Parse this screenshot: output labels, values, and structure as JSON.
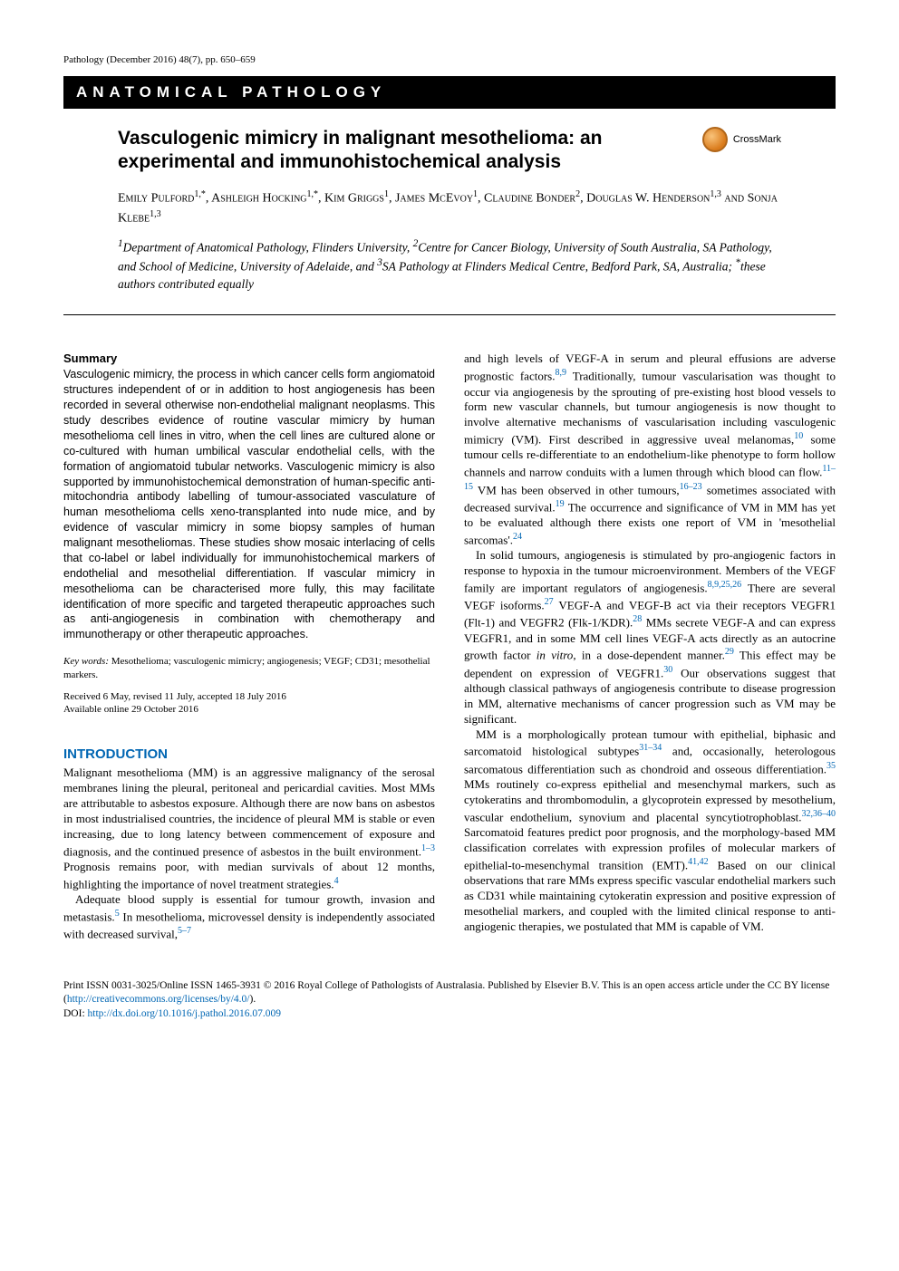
{
  "journal_header": "Pathology (December 2016) 48(7), pp. 650–659",
  "category": "ANATOMICAL PATHOLOGY",
  "title": "Vasculogenic mimicry in malignant mesothelioma: an experimental and immunohistochemical analysis",
  "crossmark_label": "CrossMark",
  "authors_html": "Emily Pulford<sup>1,*</sup>, Ashleigh Hocking<sup>1,*</sup>, Kim Griggs<sup>1</sup>, James McEvoy<sup>1</sup>, Claudine Bonder<sup>2</sup>, Douglas W. Henderson<sup>1,3</sup> and Sonja Klebe<sup>1,3</sup>",
  "affiliations_html": "<sup>1</sup>Department of Anatomical Pathology, Flinders University, <sup>2</sup>Centre for Cancer Biology, University of South Australia, SA Pathology, and School of Medicine, University of Adelaide, and <sup>3</sup>SA Pathology at Flinders Medical Centre, Bedford Park, SA, Australia; <sup>*</sup>these authors contributed equally",
  "summary": {
    "heading": "Summary",
    "body": "Vasculogenic mimicry, the process in which cancer cells form angiomatoid structures independent of or in addition to host angiogenesis has been recorded in several otherwise non-endothelial malignant neoplasms. This study describes evidence of routine vascular mimicry by human mesothelioma cell lines in vitro, when the cell lines are cultured alone or co-cultured with human umbilical vascular endothelial cells, with the formation of angiomatoid tubular networks. Vasculogenic mimicry is also supported by immunohistochemical demonstration of human-specific anti-mitochondria antibody labelling of tumour-associated vasculature of human mesothelioma cells xeno-transplanted into nude mice, and by evidence of vascular mimicry in some biopsy samples of human malignant mesotheliomas. These studies show mosaic interlacing of cells that co-label or label individually for immunohistochemical markers of endothelial and mesothelial differentiation. If vascular mimicry in mesothelioma can be characterised more fully, this may facilitate identification of more specific and targeted therapeutic approaches such as anti-angiogenesis in combination with chemotherapy and immunotherapy or other therapeutic approaches."
  },
  "keywords_label": "Key words:",
  "keywords": " Mesothelioma; vasculogenic mimicry; angiogenesis; VEGF; CD31; mesothelial markers.",
  "dates": "Received 6 May, revised 11 July, accepted 18 July 2016\nAvailable online 29 October 2016",
  "intro_heading": "INTRODUCTION",
  "left_paras": [
    "Malignant mesothelioma (MM) is an aggressive malignancy of the serosal membranes lining the pleural, peritoneal and pericardial cavities. Most MMs are attributable to asbestos exposure. Although there are now bans on asbestos in most industrialised countries, the incidence of pleural MM is stable or even increasing, due to long latency between commencement of exposure and diagnosis, and the continued presence of asbestos in the built environment.<span class=\"ref\">1–3</span> Prognosis remains poor, with median survivals of about 12 months, highlighting the importance of novel treatment strategies.<span class=\"ref\">4</span>",
    "Adequate blood supply is essential for tumour growth, invasion and metastasis.<span class=\"ref\">5</span> In mesothelioma, microvessel density is independently associated with decreased survival,<span class=\"ref\">5–7</span>"
  ],
  "right_paras": [
    "and high levels of VEGF-A in serum and pleural effusions are adverse prognostic factors.<span class=\"ref\">8,9</span> Traditionally, tumour vascularisation was thought to occur via angiogenesis by the sprouting of pre-existing host blood vessels to form new vascular channels, but tumour angiogenesis is now thought to involve alternative mechanisms of vascularisation including vasculogenic mimicry (VM). First described in aggressive uveal melanomas,<span class=\"ref\">10</span> some tumour cells re-differentiate to an endothelium-like phenotype to form hollow channels and narrow conduits with a lumen through which blood can flow.<span class=\"ref\">11–15</span> VM has been observed in other tumours,<span class=\"ref\">16–23</span> sometimes associated with decreased survival.<span class=\"ref\">19</span> The occurrence and significance of VM in MM has yet to be evaluated although there exists one report of VM in 'mesothelial sarcomas'.<span class=\"ref\">24</span>",
    "In solid tumours, angiogenesis is stimulated by pro-angiogenic factors in response to hypoxia in the tumour microenvironment. Members of the VEGF family are important regulators of angiogenesis.<span class=\"ref\">8,9,25,26</span> There are several VEGF isoforms.<span class=\"ref\">27</span> VEGF-A and VEGF-B act via their receptors VEGFR1 (Flt-1) and VEGFR2 (Flk-1/KDR).<span class=\"ref\">28</span> MMs secrete VEGF-A and can express VEGFR1, and in some MM cell lines VEGF-A acts directly as an autocrine growth factor <span class=\"ital\">in vitro</span>, in a dose-dependent manner.<span class=\"ref\">29</span> This effect may be dependent on expression of VEGFR1.<span class=\"ref\">30</span> Our observations suggest that although classical pathways of angiogenesis contribute to disease progression in MM, alternative mechanisms of cancer progression such as VM may be significant.",
    "MM is a morphologically protean tumour with epithelial, biphasic and sarcomatoid histological subtypes<span class=\"ref\">31–34</span> and, occasionally, heterologous sarcomatous differentiation such as chondroid and osseous differentiation.<span class=\"ref\">35</span> MMs routinely co-express epithelial and mesenchymal markers, such as cytokeratins and thrombomodulin, a glycoprotein expressed by mesothelium, vascular endothelium, synovium and placental syncytiotrophoblast.<span class=\"ref\">32,36–40</span> Sarcomatoid features predict poor prognosis, and the morphology-based MM classification correlates with expression profiles of molecular markers of epithelial-to-mesenchymal transition (EMT).<span class=\"ref\">41,42</span> Based on our clinical observations that rare MMs express specific vascular endothelial markers such as CD31 while maintaining cytokeratin expression and positive expression of mesothelial markers, and coupled with the limited clinical response to anti-angiogenic therapies, we postulated that MM is capable of VM."
  ],
  "footer": {
    "issn": "Print ISSN 0031-3025/Online ISSN 1465-3931 © 2016 Royal College of Pathologists of Australasia. Published by Elsevier B.V. This is an open access article under the CC BY license (",
    "cc_url": "http://creativecommons.org/licenses/by/4.0/",
    "cc_close": ").",
    "doi_label": "DOI: ",
    "doi_url": "http://dx.doi.org/10.1016/j.pathol.2016.07.009"
  },
  "colors": {
    "link": "#0066b3",
    "text": "#000000",
    "bg": "#ffffff"
  }
}
